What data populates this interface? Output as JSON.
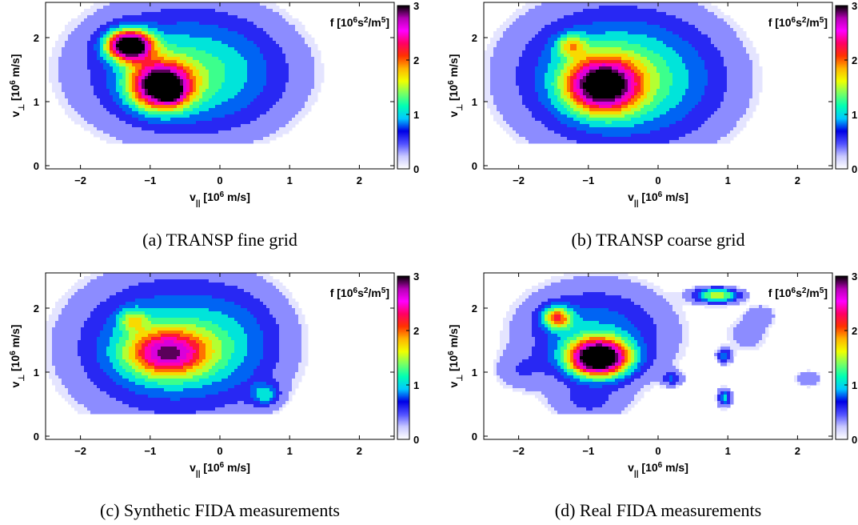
{
  "colorbar": {
    "range": [
      0,
      3
    ],
    "ticks": [
      0,
      1,
      2,
      3
    ],
    "stops": [
      "#ffffff",
      "#c8c8ff",
      "#5050ff",
      "#0000e6",
      "#00c8ff",
      "#00ffb4",
      "#78ff64",
      "#f0ff00",
      "#ffb400",
      "#ff3200",
      "#ff0064",
      "#ff00ff",
      "#b400b4",
      "#000000"
    ]
  },
  "chart_data": [
    {
      "type": "contour",
      "id": "a",
      "caption": "(a)  TRANSP fine grid",
      "xlabel": "v|| [10^6 m/s]",
      "ylabel": "v⊥ [10^6 m/s]",
      "colorbar_label": "f [10^6s^2/m^5]",
      "xlim": [
        -2.5,
        2.5
      ],
      "ylim": [
        -0.05,
        2.55
      ],
      "xticks": [
        -2,
        -1,
        0,
        1,
        2
      ],
      "yticks": [
        0,
        1,
        2
      ],
      "blobs": [
        {
          "x": -1.3,
          "y": 1.88,
          "sx": 0.22,
          "sy": 0.16,
          "amp": 3.2
        },
        {
          "x": -0.85,
          "y": 1.25,
          "sx": 0.3,
          "sy": 0.25,
          "amp": 2.7
        },
        {
          "x": -0.7,
          "y": 1.12,
          "sx": 0.12,
          "sy": 0.1,
          "amp": 0.8
        },
        {
          "x": -0.6,
          "y": 1.5,
          "sx": 1.0,
          "sy": 0.72,
          "amp": 1.0
        },
        {
          "x": 0.1,
          "y": 1.4,
          "sx": 0.75,
          "sy": 0.6,
          "amp": 0.35
        }
      ]
    },
    {
      "type": "contour",
      "id": "b",
      "caption": "(b)  TRANSP coarse grid",
      "xlabel": "v|| [10^6 m/s]",
      "ylabel": "v⊥ [10^6 m/s]",
      "colorbar_label": "f [10^6s^2/m^5]",
      "xlim": [
        -2.5,
        2.5
      ],
      "ylim": [
        -0.05,
        2.55
      ],
      "xticks": [
        -2,
        -1,
        0,
        1,
        2
      ],
      "yticks": [
        0,
        1,
        2
      ],
      "blobs": [
        {
          "x": -0.8,
          "y": 1.25,
          "sx": 0.35,
          "sy": 0.28,
          "amp": 2.4
        },
        {
          "x": -1.25,
          "y": 1.88,
          "sx": 0.15,
          "sy": 0.12,
          "amp": 0.9
        },
        {
          "x": -0.7,
          "y": 1.4,
          "sx": 0.95,
          "sy": 0.75,
          "amp": 1.2
        },
        {
          "x": 0.2,
          "y": 1.3,
          "sx": 0.8,
          "sy": 0.7,
          "amp": 0.35
        }
      ]
    },
    {
      "type": "contour",
      "id": "c",
      "caption": "(c)  Synthetic FIDA measurements",
      "xlabel": "v|| [10^6 m/s]",
      "ylabel": "v⊥ [10^6 m/s]",
      "colorbar_label": "f [10^6s^2/m^5]",
      "xlim": [
        -2.5,
        2.5
      ],
      "ylim": [
        -0.05,
        2.55
      ],
      "xticks": [
        -2,
        -1,
        0,
        1,
        2
      ],
      "yticks": [
        0,
        1,
        2
      ],
      "blobs": [
        {
          "x": -0.75,
          "y": 1.3,
          "sx": 0.4,
          "sy": 0.25,
          "amp": 1.7
        },
        {
          "x": -1.25,
          "y": 1.82,
          "sx": 0.14,
          "sy": 0.12,
          "amp": 0.8
        },
        {
          "x": -0.7,
          "y": 1.4,
          "sx": 0.95,
          "sy": 0.75,
          "amp": 1.2
        },
        {
          "x": 0.65,
          "y": 0.65,
          "sx": 0.14,
          "sy": 0.12,
          "amp": 0.8
        },
        {
          "x": 0.3,
          "y": 1.5,
          "sx": 0.5,
          "sy": 0.6,
          "amp": 0.3
        }
      ]
    },
    {
      "type": "contour",
      "id": "d",
      "caption": "(d)  Real FIDA measurements",
      "xlabel": "v|| [10^6 m/s]",
      "ylabel": "v⊥ [10^6 m/s]",
      "colorbar_label": "f [10^6s^2/m^5]",
      "xlim": [
        -2.5,
        2.5
      ],
      "ylim": [
        -0.05,
        2.55
      ],
      "xticks": [
        -2,
        -1,
        0,
        1,
        2
      ],
      "yticks": [
        0,
        1,
        2
      ],
      "blobs": [
        {
          "x": -0.85,
          "y": 1.22,
          "sx": 0.3,
          "sy": 0.2,
          "amp": 3.3
        },
        {
          "x": -1.45,
          "y": 1.85,
          "sx": 0.15,
          "sy": 0.12,
          "amp": 1.6
        },
        {
          "x": -0.9,
          "y": 1.6,
          "sx": 0.75,
          "sy": 0.55,
          "amp": 0.9
        },
        {
          "x": 0.85,
          "y": 2.2,
          "sx": 0.22,
          "sy": 0.08,
          "amp": 1.6
        },
        {
          "x": 0.95,
          "y": 1.25,
          "sx": 0.07,
          "sy": 0.08,
          "amp": 0.8
        },
        {
          "x": 0.95,
          "y": 0.6,
          "sx": 0.07,
          "sy": 0.1,
          "amp": 1.0
        },
        {
          "x": 0.2,
          "y": 0.9,
          "sx": 0.1,
          "sy": 0.08,
          "amp": 0.6
        },
        {
          "x": 2.15,
          "y": 0.9,
          "sx": 0.15,
          "sy": 0.1,
          "amp": 0.4
        },
        {
          "x": 1.3,
          "y": 1.6,
          "sx": 0.25,
          "sy": 0.25,
          "amp": 0.3
        },
        {
          "x": -2.0,
          "y": 1.0,
          "sx": 0.25,
          "sy": 0.2,
          "amp": 0.3
        },
        {
          "x": -1.0,
          "y": 0.5,
          "sx": 0.4,
          "sy": 0.2,
          "amp": 0.4
        },
        {
          "x": 1.5,
          "y": 1.9,
          "sx": 0.15,
          "sy": 0.12,
          "amp": 0.3
        }
      ]
    }
  ]
}
